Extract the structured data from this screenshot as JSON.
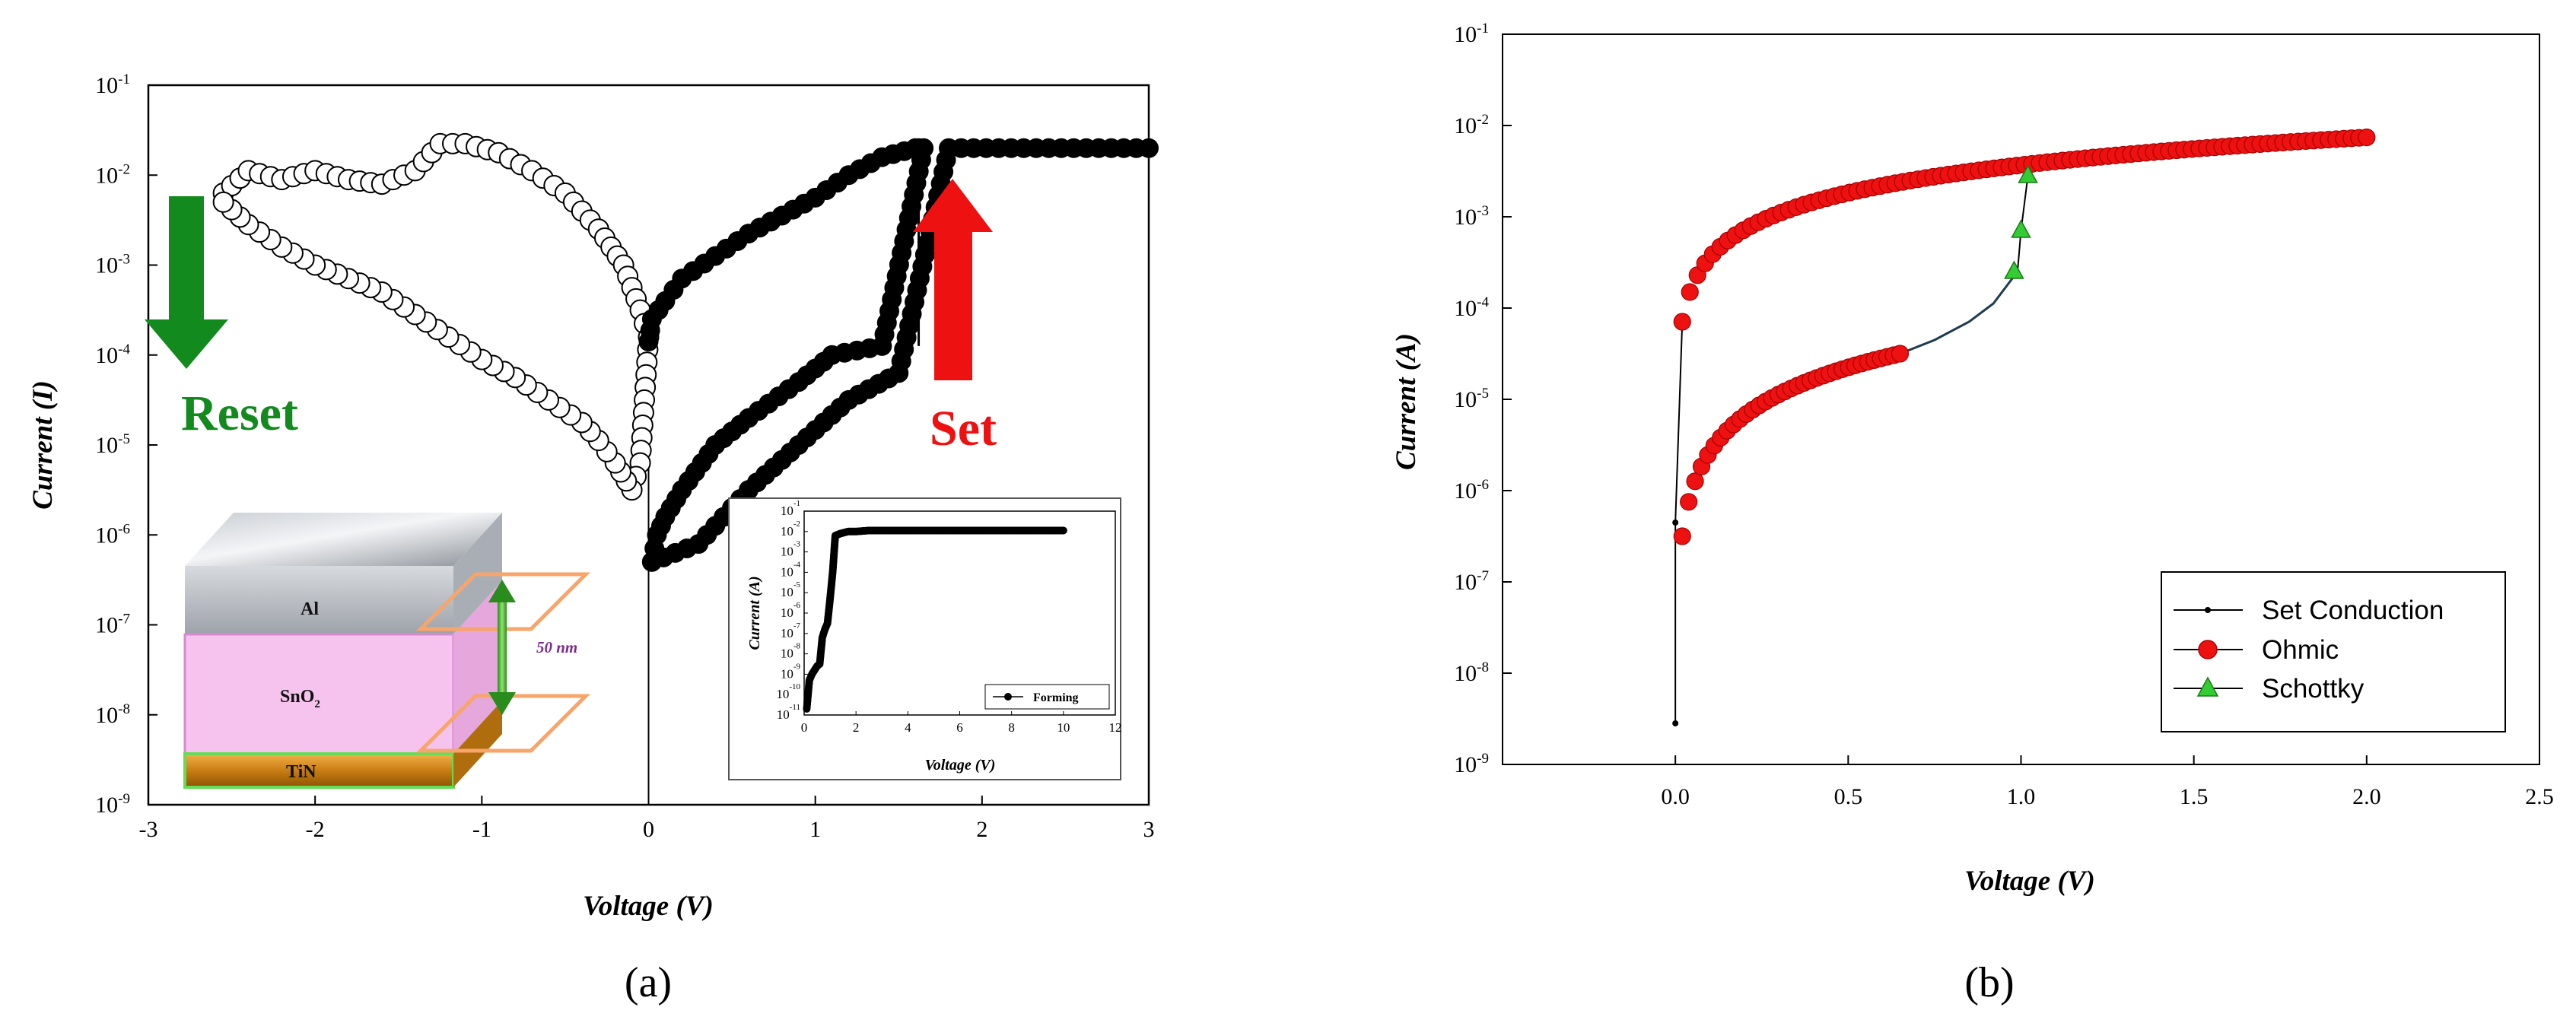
{
  "chart_data": [
    {
      "panel_label": "(a)",
      "type": "scatter",
      "xlabel": "Voltage (V)",
      "ylabel": "Current (I)",
      "xlim": [
        -3,
        3
      ],
      "ylim_exp": [
        -9,
        -1
      ],
      "scale_y": "log",
      "xticks": [
        "-3",
        "-2",
        "-1",
        "0",
        "1",
        "2",
        "3"
      ],
      "ytick_exponents": [
        "-1",
        "-2",
        "-3",
        "-4",
        "-5",
        "-6",
        "-7",
        "-8",
        "-9"
      ],
      "ytick_base": "10",
      "series": [
        {
          "style": "open-circles",
          "x": [
            -2.55,
            -2.4,
            -2.2,
            -2.0,
            -1.8,
            -1.6,
            -1.4,
            -1.25,
            -1.1,
            -0.9,
            -0.7,
            -0.5,
            -0.3,
            -0.15,
            -0.05,
            0.0,
            -0.05,
            -0.1,
            -0.2,
            -0.3,
            -0.4,
            -0.6,
            -0.8,
            -1.0,
            -1.2,
            -1.4,
            -1.6,
            -1.8,
            -2.0,
            -2.2,
            -2.4,
            -2.55
          ],
          "y_log10": [
            -2.2,
            -1.95,
            -2.05,
            -1.95,
            -2.05,
            -2.1,
            -1.95,
            -1.65,
            -1.65,
            -1.75,
            -1.95,
            -2.2,
            -2.6,
            -3.0,
            -3.5,
            -3.8,
            -5.2,
            -5.5,
            -5.2,
            -4.95,
            -4.75,
            -4.5,
            -4.25,
            -4.05,
            -3.8,
            -3.55,
            -3.3,
            -3.15,
            -3.0,
            -2.8,
            -2.55,
            -2.3
          ]
        },
        {
          "style": "filled-circles",
          "x": [
            0.0,
            0.02,
            0.1,
            0.2,
            0.4,
            0.6,
            0.8,
            1.0,
            1.2,
            1.4,
            1.6,
            1.62,
            1.65,
            1.4,
            1.1,
            0.9,
            0.6,
            0.4,
            0.2,
            0.1,
            0.05,
            0.02,
            0.02,
            0.3,
            0.6,
            0.9,
            1.2,
            1.5,
            1.8,
            2.1,
            2.4,
            2.7,
            3.0
          ],
          "y_log10": [
            -3.85,
            -3.6,
            -3.4,
            -3.15,
            -2.9,
            -2.65,
            -2.45,
            -2.25,
            -2.0,
            -1.8,
            -1.7,
            -1.7,
            -1.7,
            -3.9,
            -4.0,
            -4.3,
            -4.7,
            -5.0,
            -5.5,
            -5.8,
            -6.0,
            -6.3,
            -6.3,
            -6.1,
            -5.5,
            -5.0,
            -4.5,
            -4.2,
            -1.7,
            -1.7,
            -1.7,
            -1.7,
            -1.7
          ]
        }
      ],
      "annotations": {
        "reset": "Reset",
        "set": "Set",
        "layer_top": "Al",
        "layer_mid_base": "SnO",
        "layer_mid_sub": "2",
        "layer_bottom": "TiN",
        "thickness": "50 nm"
      },
      "inset": {
        "type": "scatter",
        "xlabel": "Voltage (V)",
        "ylabel": "Current (A)",
        "xlim": [
          0,
          12
        ],
        "xticks": [
          "0",
          "2",
          "4",
          "6",
          "8",
          "10",
          "12"
        ],
        "ytick_exponents": [
          "-1",
          "-2",
          "-3",
          "-4",
          "-5",
          "-6",
          "-7",
          "-8",
          "-9",
          "-10",
          "-11"
        ],
        "legend": "Forming",
        "x": [
          0.1,
          0.2,
          0.3,
          0.4,
          0.5,
          0.6,
          0.7,
          0.8,
          0.9,
          1.0,
          1.1,
          1.2,
          1.4,
          1.7,
          2.0,
          2.5,
          3.0,
          4.0,
          5.0,
          6.0,
          7.0,
          8.0,
          9.0,
          10.0
        ],
        "y_log10": [
          -10.7,
          -9.3,
          -9.0,
          -8.8,
          -8.6,
          -8.5,
          -7.2,
          -6.8,
          -6.5,
          -5.3,
          -4.0,
          -2.2,
          -2.1,
          -2.0,
          -2.0,
          -1.95,
          -1.95,
          -1.95,
          -1.95,
          -1.95,
          -1.95,
          -1.95,
          -1.95,
          -1.95
        ]
      }
    },
    {
      "panel_label": "(b)",
      "type": "line",
      "xlabel": "Voltage (V)",
      "ylabel": "Current (A)",
      "xlim": [
        -0.5,
        2.5
      ],
      "xticks": [
        "0.0",
        "0.5",
        "1.0",
        "1.5",
        "2.0",
        "2.5"
      ],
      "ytick_exponents": [
        "-1",
        "-2",
        "-3",
        "-4",
        "-5",
        "-6",
        "-7",
        "-8",
        "-9"
      ],
      "ytick_base": "10",
      "scale_y": "log",
      "legend_position": "bottom-right",
      "series": [
        {
          "name": "Set Conduction",
          "color": "#000000",
          "x": [
            0.0,
            0.0,
            0.02,
            0.05,
            0.1,
            0.2,
            0.3,
            0.4,
            0.5,
            0.6,
            0.65,
            0.8,
            0.9,
            0.97,
            0.99,
            1.0,
            1.02,
            1.1,
            1.2,
            1.4,
            1.6,
            1.8,
            2.0
          ],
          "y_log10": [
            -8.55,
            -6.35,
            -4.15,
            -3.85,
            -3.55,
            -3.2,
            -3.0,
            -2.85,
            -2.7,
            -2.6,
            -4.5,
            -4.25,
            -4.0,
            -3.65,
            -3.15,
            -2.55,
            -2.45,
            -2.4,
            -2.35,
            -2.3,
            -2.22,
            -2.17,
            -2.15
          ]
        },
        {
          "name": "Ohmic",
          "color": "#ee1111",
          "marker": "circle",
          "segments": [
            {
              "x_start": 0.02,
              "x_end": 2.0,
              "y_log10_start": -4.15,
              "y_log10_end": -2.13
            },
            {
              "x_start": 0.02,
              "x_end": 0.65,
              "y_log10_start": -6.5,
              "y_log10_end": -4.5
            }
          ]
        },
        {
          "name": "Schottky",
          "color": "#33cc33",
          "marker": "triangle",
          "x": [
            0.98,
            1.0,
            1.02
          ],
          "y_log10": [
            -3.6,
            -3.15,
            -2.55
          ]
        }
      ]
    }
  ]
}
